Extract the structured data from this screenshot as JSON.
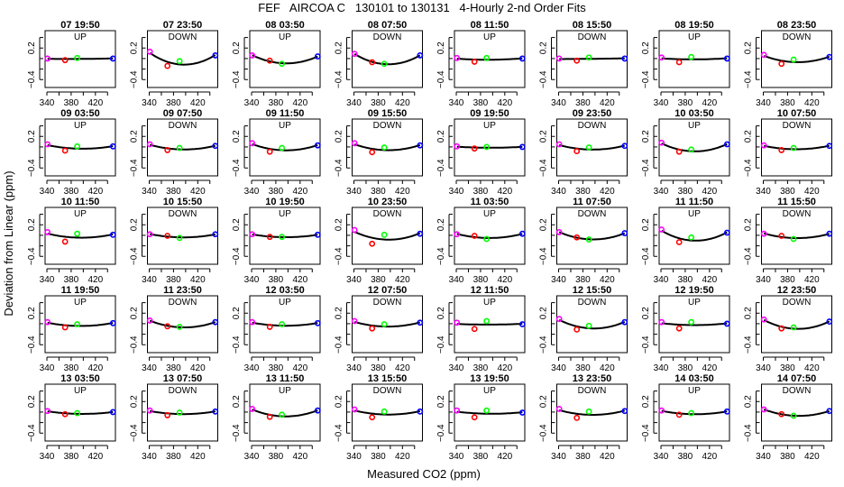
{
  "chart_data": {
    "type": "scatter",
    "title": "FEF   AIRCOA C   130101 to 130131   4-Hourly 2-nd Order Fits",
    "xlabel": "Measured CO2 (ppm)",
    "ylabel": "Deviation from Linear (ppm)",
    "xlim": [
      337,
      453
    ],
    "ylim": [
      -0.55,
      0.53
    ],
    "xticks": [
      340,
      360,
      380,
      400,
      420,
      440
    ],
    "xtick_labels": [
      "340",
      "380",
      "420"
    ],
    "yticks": [
      0.4,
      0.2,
      0,
      -0.2,
      -0.4
    ],
    "ytick_labels": [
      "0.2",
      "-0.4"
    ],
    "grid": false,
    "fit": "2nd order polynomial",
    "point_colors": [
      "#ff00ff",
      "#ff0000",
      "#00ff00",
      "#0000ff"
    ],
    "x": [
      341,
      370,
      390,
      449
    ],
    "panels": [
      {
        "title": "07 19:50",
        "dir": "UP",
        "y": [
          0.0,
          -0.03,
          0.01,
          0.0
        ]
      },
      {
        "title": "07 23:50",
        "dir": "DOWN",
        "y": [
          0.13,
          -0.14,
          -0.05,
          0.06
        ]
      },
      {
        "title": "08 03:50",
        "dir": "UP",
        "y": [
          0.06,
          -0.04,
          -0.1,
          0.04
        ]
      },
      {
        "title": "08 07:50",
        "dir": "DOWN",
        "y": [
          0.09,
          -0.07,
          -0.1,
          0.06
        ]
      },
      {
        "title": "08 11:50",
        "dir": "UP",
        "y": [
          0.01,
          -0.06,
          0.01,
          0.0
        ]
      },
      {
        "title": "08 15:50",
        "dir": "DOWN",
        "y": [
          0.0,
          -0.04,
          0.02,
          0.0
        ]
      },
      {
        "title": "08 19:50",
        "dir": "UP",
        "y": [
          0.02,
          -0.07,
          0.03,
          0.0
        ]
      },
      {
        "title": "08 23:50",
        "dir": "DOWN",
        "y": [
          0.07,
          -0.1,
          -0.02,
          0.03
        ]
      },
      {
        "title": "09 03:50",
        "dir": "UP",
        "y": [
          0.05,
          -0.07,
          0.01,
          0.01
        ]
      },
      {
        "title": "09 07:50",
        "dir": "DOWN",
        "y": [
          0.05,
          -0.06,
          -0.02,
          0.02
        ]
      },
      {
        "title": "09 11:50",
        "dir": "UP",
        "y": [
          0.07,
          -0.09,
          -0.02,
          0.03
        ]
      },
      {
        "title": "09 15:50",
        "dir": "DOWN",
        "y": [
          0.07,
          -0.1,
          -0.01,
          0.03
        ]
      },
      {
        "title": "09 19:50",
        "dir": "UP",
        "y": [
          0.01,
          -0.03,
          0.0,
          0.0
        ]
      },
      {
        "title": "09 23:50",
        "dir": "DOWN",
        "y": [
          0.05,
          -0.08,
          -0.01,
          0.02
        ]
      },
      {
        "title": "10 03:50",
        "dir": "UP",
        "y": [
          0.08,
          -0.09,
          -0.05,
          0.05
        ]
      },
      {
        "title": "10 07:50",
        "dir": "DOWN",
        "y": [
          0.03,
          -0.06,
          -0.02,
          0.02
        ]
      },
      {
        "title": "10 11:50",
        "dir": "UP",
        "y": [
          0.06,
          -0.12,
          0.03,
          0.01
        ]
      },
      {
        "title": "10 15:50",
        "dir": "DOWN",
        "y": [
          0.02,
          -0.01,
          -0.05,
          0.02
        ]
      },
      {
        "title": "10 19:50",
        "dir": "UP",
        "y": [
          0.02,
          -0.03,
          -0.03,
          0.01
        ]
      },
      {
        "title": "10 23:50",
        "dir": "DOWN",
        "y": [
          0.1,
          -0.16,
          0.01,
          0.03
        ]
      },
      {
        "title": "11 03:50",
        "dir": "UP",
        "y": [
          0.02,
          -0.01,
          -0.07,
          0.03
        ]
      },
      {
        "title": "11 07:50",
        "dir": "DOWN",
        "y": [
          0.06,
          -0.04,
          -0.08,
          0.04
        ]
      },
      {
        "title": "11 11:50",
        "dir": "UP",
        "y": [
          0.11,
          -0.13,
          -0.04,
          0.05
        ]
      },
      {
        "title": "11 15:50",
        "dir": "DOWN",
        "y": [
          0.03,
          -0.01,
          -0.07,
          0.03
        ]
      },
      {
        "title": "11 19:50",
        "dir": "UP",
        "y": [
          0.03,
          -0.07,
          -0.01,
          0.01
        ]
      },
      {
        "title": "11 23:50",
        "dir": "DOWN",
        "y": [
          0.06,
          -0.05,
          -0.06,
          0.03
        ]
      },
      {
        "title": "12 03:50",
        "dir": "UP",
        "y": [
          0.03,
          -0.06,
          -0.01,
          0.01
        ]
      },
      {
        "title": "12 07:50",
        "dir": "DOWN",
        "y": [
          0.05,
          -0.09,
          -0.01,
          0.02
        ]
      },
      {
        "title": "12 11:50",
        "dir": "UP",
        "y": [
          0.02,
          -0.1,
          0.05,
          -0.01
        ]
      },
      {
        "title": "12 15:50",
        "dir": "DOWN",
        "y": [
          0.09,
          -0.11,
          -0.04,
          0.03
        ]
      },
      {
        "title": "12 19:50",
        "dir": "UP",
        "y": [
          0.03,
          -0.09,
          0.03,
          0.0
        ]
      },
      {
        "title": "12 23:50",
        "dir": "DOWN",
        "y": [
          0.08,
          -0.09,
          -0.07,
          0.04
        ]
      },
      {
        "title": "13 03:50",
        "dir": "UP",
        "y": [
          0.02,
          -0.04,
          -0.02,
          0.0
        ]
      },
      {
        "title": "13 07:50",
        "dir": "DOWN",
        "y": [
          0.03,
          -0.06,
          -0.01,
          0.01
        ]
      },
      {
        "title": "13 11:50",
        "dir": "UP",
        "y": [
          0.06,
          -0.09,
          -0.05,
          0.03
        ]
      },
      {
        "title": "13 15:50",
        "dir": "DOWN",
        "y": [
          0.05,
          -0.1,
          0.01,
          0.01
        ]
      },
      {
        "title": "13 19:50",
        "dir": "UP",
        "y": [
          0.03,
          -0.1,
          0.03,
          -0.01
        ]
      },
      {
        "title": "13 23:50",
        "dir": "DOWN",
        "y": [
          0.06,
          -0.11,
          0.01,
          0.02
        ]
      },
      {
        "title": "14 03:50",
        "dir": "UP",
        "y": [
          0.03,
          -0.05,
          -0.02,
          0.01
        ]
      },
      {
        "title": "14 07:50",
        "dir": "DOWN",
        "y": [
          0.05,
          -0.04,
          -0.07,
          0.02
        ]
      }
    ]
  }
}
